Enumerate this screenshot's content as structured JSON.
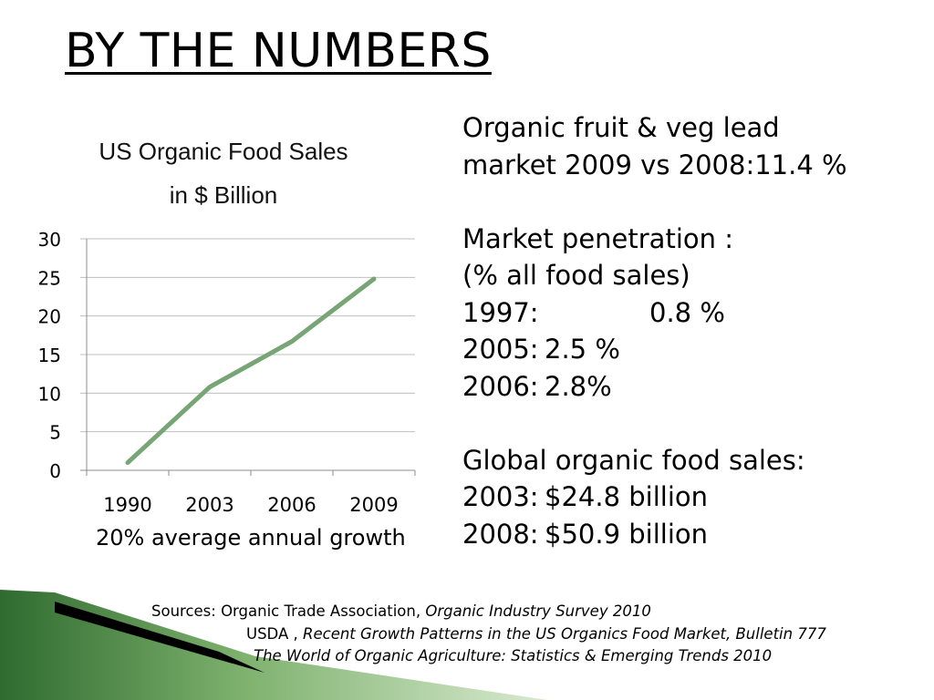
{
  "slide": {
    "title": "BY THE NUMBERS",
    "caption": "20%  average annual growth"
  },
  "chart_data": {
    "type": "line",
    "title": "US Organic Food Sales",
    "subtitle": "in $ Billion",
    "categories": [
      "1990",
      "2003",
      "2006",
      "2009"
    ],
    "series": [
      {
        "values": [
          1,
          10.8,
          16.7,
          24.8
        ],
        "color": "#77a575"
      }
    ],
    "ylim": [
      0,
      30
    ],
    "yticks": [
      0,
      5,
      10,
      15,
      20,
      25,
      30
    ],
    "grid": true
  },
  "facts": {
    "lead_line1": "Organic  fruit & veg  lead",
    "lead_line2": "market  2009 vs 2008:11.4 %",
    "penetration_heading": "Market penetration :",
    "penetration_sub": "(% all  food sales)",
    "penetration_rows": [
      {
        "year": "1997:",
        "value": "0.8 %"
      },
      {
        "year": "2005:",
        "value": "2.5 %"
      },
      {
        "year": "2006:",
        "value": "2.8%"
      }
    ],
    "global_heading": "Global organic food sales:",
    "global_rows": [
      {
        "year": "2003:",
        "value": "$24.8 billion"
      },
      {
        "year": "2008:",
        "value": "$50.9 billion"
      }
    ]
  },
  "sources": {
    "label": "Sources:  Organic Trade Association, ",
    "line1_italic": "Organic Industry Survey 2010",
    "line2_plain": "USDA , ",
    "line2_italic": "Recent Growth Patterns in the US Organics Food Market, Bulletin 777",
    "line3_italic": "The World of Organic Agriculture: Statistics & Emerging Trends 2010"
  },
  "colors": {
    "line": "#77a575",
    "grid": "#bfbfbf",
    "decor_dark_green": "#2f6b2f",
    "decor_light_green": "#a8cc96"
  }
}
